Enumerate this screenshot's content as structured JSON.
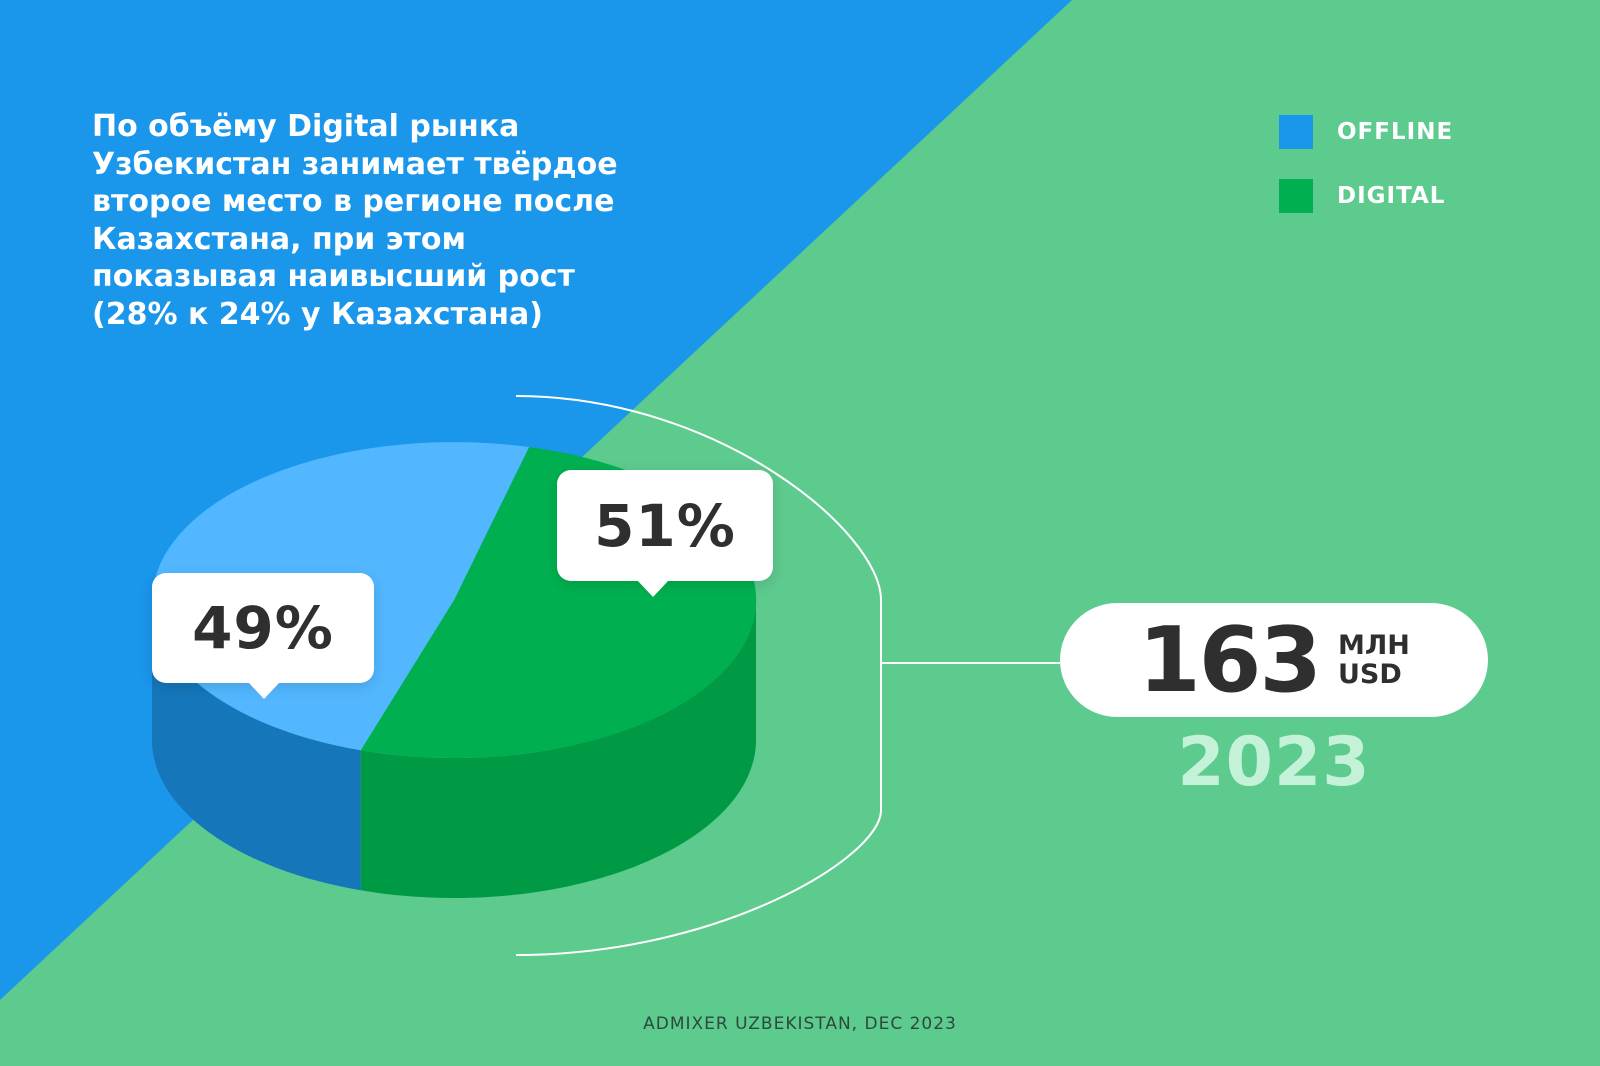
{
  "headline": "По объёму Digital рынка\nУзбекистан занимает твёрдое\nвторое место в регионе после\nКазахстана, при этом\nпоказывая наивысший рост\n(28% к 24% у Казахстана)",
  "legend": [
    {
      "label": "OFFLINE",
      "color": "#1a96eb"
    },
    {
      "label": "DIGITAL",
      "color": "#00b050"
    }
  ],
  "chart_data": {
    "type": "pie",
    "title": "",
    "slices": [
      {
        "name": "OFFLINE",
        "value": 49,
        "label": "49%",
        "color": "#52b7ff",
        "side_color": "#1577ba"
      },
      {
        "name": "DIGITAL",
        "value": 51,
        "label": "51%",
        "color": "#00b050",
        "side_color": "#009a44"
      }
    ],
    "total": {
      "value": "163",
      "unit_line1": "МЛН",
      "unit_line2": "USD",
      "year": "2023"
    }
  },
  "colors": {
    "background_blue": "#1a96eb",
    "background_green": "#5dca8e",
    "bracket": "#ffffff",
    "year_text": "#c4f2d8"
  },
  "source": "ADMIXER UZBEKISTAN, DEC 2023"
}
